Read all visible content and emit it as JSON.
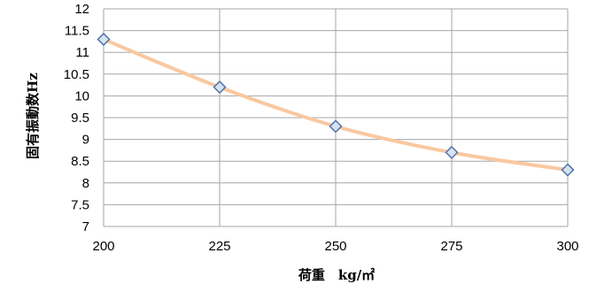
{
  "chart_data": {
    "type": "line",
    "title": "",
    "xlabel": "荷重　kg/㎡",
    "ylabel": "固有振動数Hz",
    "x": [
      200,
      225,
      250,
      275,
      300
    ],
    "series": [
      {
        "values": [
          11.3,
          10.2,
          9.3,
          8.7,
          8.3
        ],
        "line_color": "#f9c8a0",
        "marker": "diamond",
        "marker_fill": "#d7e3f1",
        "marker_stroke": "#5275a8"
      }
    ],
    "xlim": [
      200,
      300
    ],
    "ylim": [
      7,
      12
    ],
    "x_ticks": [
      "200",
      "225",
      "250",
      "275",
      "300"
    ],
    "y_ticks": [
      "7",
      "7.5",
      "8",
      "8.5",
      "9",
      "9.5",
      "10",
      "10.5",
      "11",
      "11.5",
      "12"
    ],
    "grid": true,
    "legend": "none"
  }
}
